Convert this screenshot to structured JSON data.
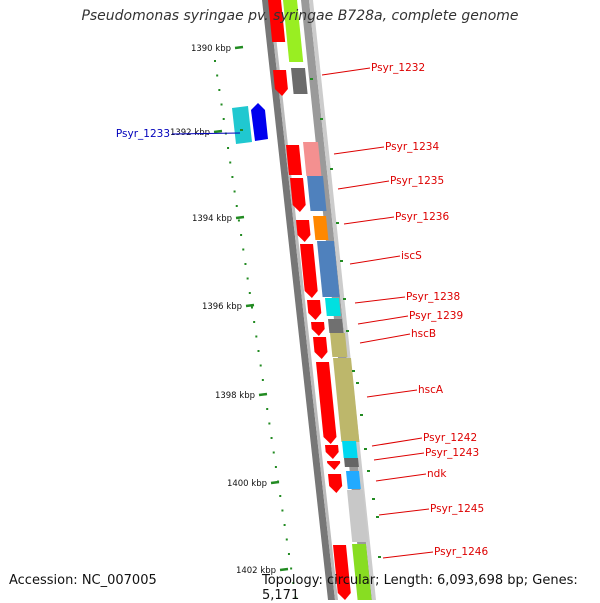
{
  "title": "Pseudomonas syringae pv. syringae B728a, complete genome",
  "footer": {
    "accession": "Accession: NC_007005",
    "stats": "Topology: circular; Length: 6,093,698 bp; Genes: 5,171"
  },
  "ruler_ticks": [
    {
      "label": "1390 kbp"
    },
    {
      "label": "1392 kbp"
    },
    {
      "label": "1394 kbp"
    },
    {
      "label": "1396 kbp"
    },
    {
      "label": "1398 kbp"
    },
    {
      "label": "1400 kbp"
    },
    {
      "label": "1402 kbp"
    }
  ],
  "features": [
    {
      "label": "Psyr_1232",
      "color": "#dd0000"
    },
    {
      "label": "Psyr_1233",
      "color": "#0000bb"
    },
    {
      "label": "Psyr_1234",
      "color": "#dd0000"
    },
    {
      "label": "Psyr_1235",
      "color": "#dd0000"
    },
    {
      "label": "Psyr_1236",
      "color": "#dd0000"
    },
    {
      "label": "iscS",
      "color": "#dd0000"
    },
    {
      "label": "Psyr_1238",
      "color": "#dd0000"
    },
    {
      "label": "Psyr_1239",
      "color": "#dd0000"
    },
    {
      "label": "hscB",
      "color": "#dd0000"
    },
    {
      "label": "hscA",
      "color": "#dd0000"
    },
    {
      "label": "Psyr_1242",
      "color": "#dd0000"
    },
    {
      "label": "Psyr_1243",
      "color": "#dd0000"
    },
    {
      "label": "ndk",
      "color": "#dd0000"
    },
    {
      "label": "Psyr_1245",
      "color": "#dd0000"
    },
    {
      "label": "Psyr_1246",
      "color": "#dd0000"
    }
  ],
  "colors": {
    "cds": "#ff0000",
    "ruler_tick": "#228b22",
    "backbone_dark": "#777777",
    "backbone_light": "#bbbbbb"
  }
}
